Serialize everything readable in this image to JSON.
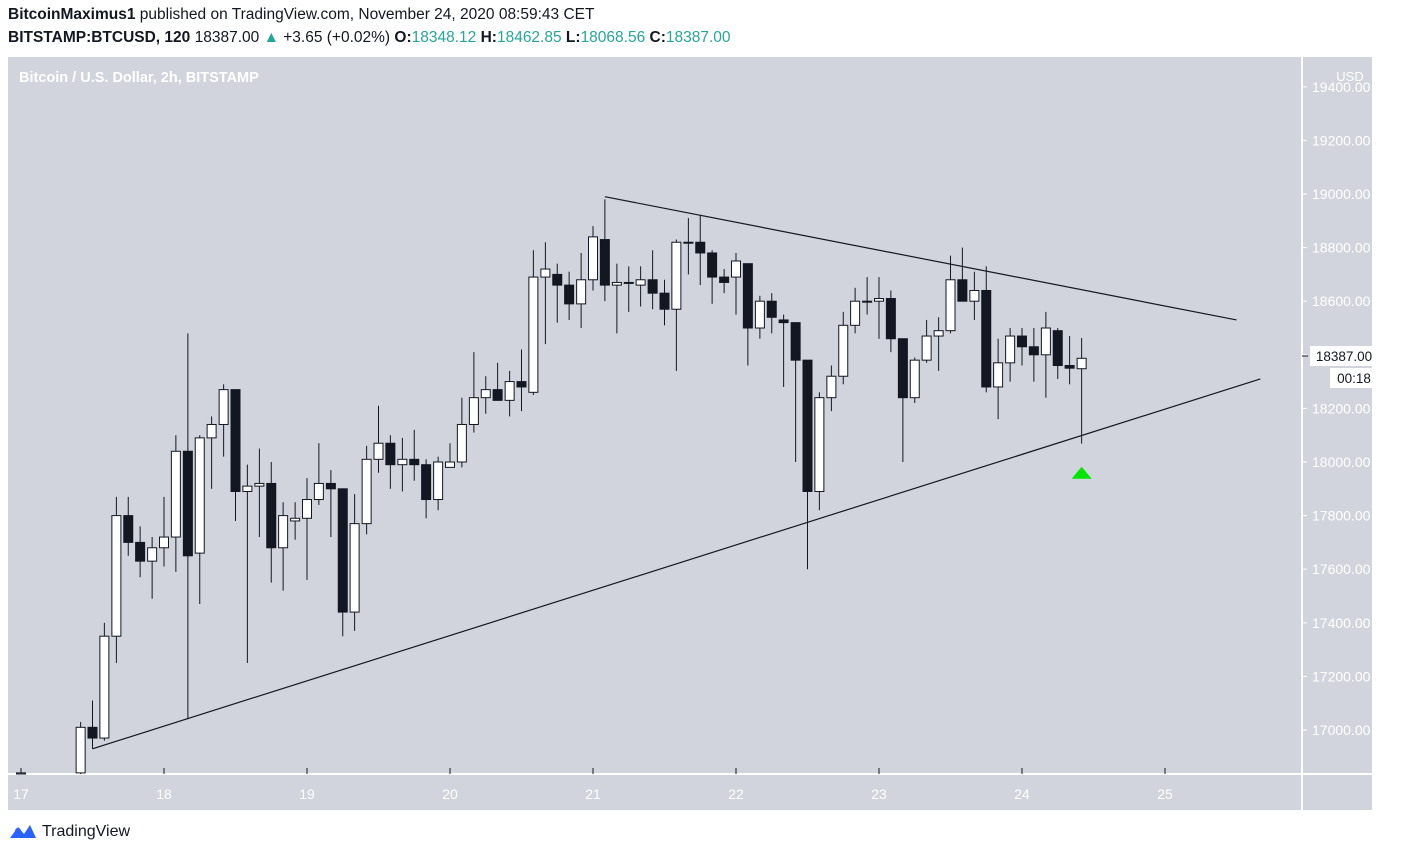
{
  "header": {
    "author": "BitcoinMaximus1",
    "published_text": "published on TradingView.com, November 24, 2020 08:59:43 CET",
    "symbol": "BITSTAMP:BTCUSD, 120",
    "last": "18387.00",
    "change_arrow": "▲",
    "change": "+3.65 (+0.02%)",
    "o_label": "O:",
    "o": "18348.12",
    "h_label": "H:",
    "h": "18462.85",
    "l_label": "L:",
    "l": "18068.56",
    "c_label": "C:",
    "c": "18387.00"
  },
  "chart_title": "Bitcoin / U.S. Dollar, 2h, BITSTAMP",
  "currency_label": "USD",
  "price_badge": "18387.00",
  "countdown_badge": "00:18",
  "footer": {
    "brand": "TradingView",
    "brand_icon": "tradingview-logo-icon"
  },
  "colors": {
    "background": "#d1d4dc",
    "bullish_body": "#ffffff",
    "bearish_body": "#131722",
    "marker": "#00e600",
    "accent": "#26a69a"
  },
  "chart_data": {
    "type": "candlestick",
    "title": "Bitcoin / U.S. Dollar, 2h, BITSTAMP",
    "ylim": [
      16840,
      19440
    ],
    "y_ticks": [
      17000,
      17200,
      17400,
      17600,
      17800,
      18000,
      18200,
      18400,
      18600,
      18800,
      19000,
      19200,
      19400
    ],
    "y_tick_labels": [
      "17000.00",
      "17200.00",
      "17400.00",
      "17600.00",
      "17800.00",
      "18000.00",
      "18200.00",
      "18400.00",
      "18600.00",
      "18800.00",
      "19000.00",
      "19200.00",
      "19400.00"
    ],
    "x_range": [
      16.96,
      26.0
    ],
    "x_ticks": [
      17,
      18,
      19,
      20,
      21,
      22,
      23,
      24,
      25
    ],
    "x_tick_labels": [
      "17",
      "18",
      "19",
      "20",
      "21",
      "22",
      "23",
      "24",
      "25"
    ],
    "candles": [
      [
        17.0,
        16830,
        16850,
        16830,
        16840
      ],
      [
        17.417,
        16840,
        17030,
        16830,
        17010
      ],
      [
        17.5,
        17010,
        17110,
        16930,
        16970
      ],
      [
        17.583,
        16970,
        17400,
        16960,
        17350
      ],
      [
        17.667,
        17350,
        17870,
        17250,
        17800
      ],
      [
        17.75,
        17800,
        17870,
        17650,
        17700
      ],
      [
        17.833,
        17700,
        17760,
        17570,
        17630
      ],
      [
        17.917,
        17630,
        17720,
        17490,
        17680
      ],
      [
        18.0,
        17680,
        17870,
        17610,
        17720
      ],
      [
        18.083,
        17720,
        18100,
        17590,
        18040
      ],
      [
        18.167,
        18040,
        18480,
        17040,
        17650
      ],
      [
        18.25,
        17660,
        18100,
        17470,
        18090
      ],
      [
        18.333,
        18090,
        18170,
        17900,
        18140
      ],
      [
        18.417,
        18140,
        18290,
        18020,
        18270
      ],
      [
        18.5,
        18270,
        18270,
        17780,
        17890
      ],
      [
        18.583,
        17890,
        17990,
        17250,
        17910
      ],
      [
        18.667,
        17910,
        18050,
        17720,
        17920
      ],
      [
        18.75,
        17920,
        18000,
        17550,
        17680
      ],
      [
        18.833,
        17680,
        17850,
        17520,
        17800
      ],
      [
        18.917,
        17780,
        17850,
        17710,
        17790
      ],
      [
        19.0,
        17790,
        17940,
        17560,
        17860
      ],
      [
        19.083,
        17860,
        18070,
        17840,
        17920
      ],
      [
        19.167,
        17920,
        17970,
        17720,
        17900
      ],
      [
        19.25,
        17900,
        17900,
        17350,
        17440
      ],
      [
        19.333,
        17440,
        17880,
        17370,
        17770
      ],
      [
        19.417,
        17770,
        18060,
        17730,
        18010
      ],
      [
        19.5,
        18010,
        18210,
        17960,
        18070
      ],
      [
        19.583,
        18070,
        18100,
        17900,
        17990
      ],
      [
        19.667,
        17990,
        18090,
        17890,
        18010
      ],
      [
        19.75,
        18010,
        18120,
        17930,
        17990
      ],
      [
        19.833,
        17990,
        18010,
        17790,
        17860
      ],
      [
        19.917,
        17860,
        18020,
        17820,
        18000
      ],
      [
        20.0,
        17980,
        18070,
        17980,
        18000
      ],
      [
        20.083,
        18000,
        18240,
        17980,
        18140
      ],
      [
        20.167,
        18140,
        18410,
        18110,
        18240
      ],
      [
        20.25,
        18240,
        18320,
        18180,
        18270
      ],
      [
        20.333,
        18270,
        18370,
        18230,
        18230
      ],
      [
        20.417,
        18230,
        18340,
        18170,
        18300
      ],
      [
        20.5,
        18300,
        18420,
        18190,
        18280
      ],
      [
        20.583,
        18260,
        18790,
        18250,
        18690
      ],
      [
        20.667,
        18690,
        18820,
        18440,
        18720
      ],
      [
        20.75,
        18700,
        18740,
        18520,
        18660
      ],
      [
        20.833,
        18660,
        18710,
        18530,
        18590
      ],
      [
        20.917,
        18590,
        18780,
        18500,
        18680
      ],
      [
        21.0,
        18680,
        18880,
        18640,
        18840
      ],
      [
        21.083,
        18830,
        18980,
        18600,
        18660
      ],
      [
        21.167,
        18660,
        18740,
        18480,
        18670
      ],
      [
        21.25,
        18670,
        18730,
        18560,
        18670
      ],
      [
        21.333,
        18660,
        18730,
        18580,
        18680
      ],
      [
        21.417,
        18680,
        18790,
        18570,
        18630
      ],
      [
        21.5,
        18630,
        18680,
        18510,
        18570
      ],
      [
        21.583,
        18570,
        18830,
        18340,
        18820
      ],
      [
        21.667,
        18820,
        18910,
        18700,
        18820
      ],
      [
        21.75,
        18820,
        18920,
        18660,
        18780
      ],
      [
        21.833,
        18780,
        18790,
        18590,
        18690
      ],
      [
        21.917,
        18690,
        18720,
        18630,
        18670
      ],
      [
        22.0,
        18690,
        18780,
        18550,
        18750
      ],
      [
        22.083,
        18740,
        18740,
        18360,
        18500
      ],
      [
        22.167,
        18500,
        18620,
        18460,
        18600
      ],
      [
        22.25,
        18600,
        18630,
        18480,
        18540
      ],
      [
        22.333,
        18530,
        18550,
        18280,
        18520
      ],
      [
        22.417,
        18520,
        18510,
        18000,
        18380
      ],
      [
        22.5,
        18380,
        18380,
        17600,
        17890
      ],
      [
        22.583,
        17890,
        18260,
        17820,
        18240
      ],
      [
        22.667,
        18240,
        18360,
        18190,
        18320
      ],
      [
        22.75,
        18320,
        18560,
        18290,
        18510
      ],
      [
        22.833,
        18510,
        18650,
        18480,
        18600
      ],
      [
        22.917,
        18600,
        18690,
        18550,
        18600
      ],
      [
        23.0,
        18600,
        18690,
        18460,
        18610
      ],
      [
        23.083,
        18610,
        18640,
        18410,
        18460
      ],
      [
        23.167,
        18460,
        18460,
        18000,
        18240
      ],
      [
        23.25,
        18240,
        18390,
        18220,
        18380
      ],
      [
        23.333,
        18380,
        18530,
        18370,
        18470
      ],
      [
        23.417,
        18470,
        18540,
        18340,
        18490
      ],
      [
        23.5,
        18490,
        18770,
        18480,
        18680
      ],
      [
        23.583,
        18680,
        18800,
        18600,
        18600
      ],
      [
        23.667,
        18600,
        18710,
        18530,
        18640
      ],
      [
        23.75,
        18640,
        18730,
        18260,
        18280
      ],
      [
        23.833,
        18280,
        18460,
        18160,
        18370
      ],
      [
        23.917,
        18370,
        18500,
        18300,
        18470
      ],
      [
        24.0,
        18470,
        18500,
        18360,
        18430
      ],
      [
        24.083,
        18430,
        18500,
        18300,
        18400
      ],
      [
        24.167,
        18400,
        18560,
        18240,
        18500
      ],
      [
        24.25,
        18490,
        18500,
        18310,
        18360
      ],
      [
        24.333,
        18360,
        18470,
        18290,
        18350
      ],
      [
        24.417,
        18348.12,
        18462.85,
        18068.56,
        18387.0
      ]
    ],
    "trendlines": [
      {
        "name": "descending-resistance",
        "from": [
          21.083,
          18990
        ],
        "to": [
          25.5,
          18530
        ]
      },
      {
        "name": "ascending-support",
        "from": [
          17.5,
          16930
        ],
        "to": [
          25.667,
          18310
        ]
      }
    ],
    "marker": {
      "type": "up-arrow",
      "x": 24.417,
      "y": 17960
    },
    "last_price": 18387.0
  }
}
